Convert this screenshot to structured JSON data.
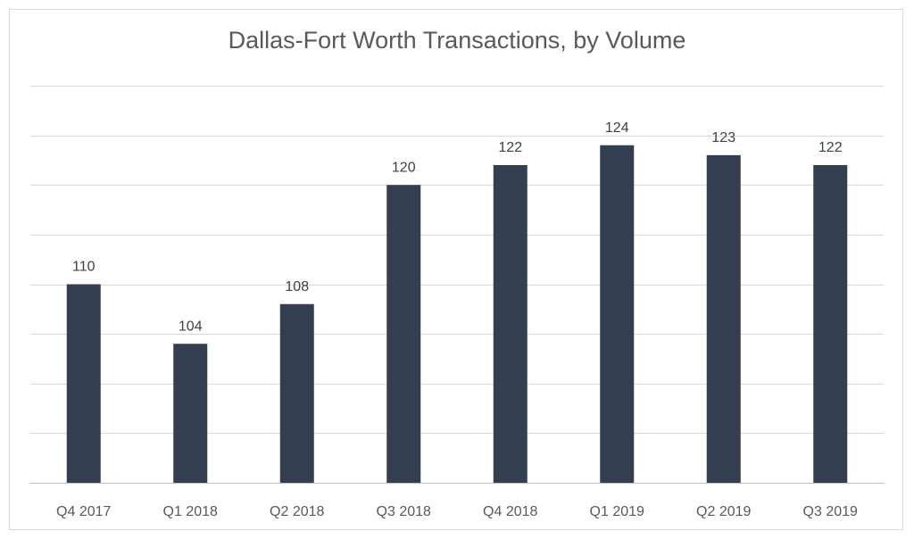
{
  "chart_data": {
    "type": "bar",
    "title": "Dallas-Fort Worth Transactions, by Volume",
    "xlabel": "",
    "ylabel": "",
    "categories": [
      "Q4 2017",
      "Q1 2018",
      "Q2 2018",
      "Q3 2018",
      "Q4 2018",
      "Q1 2019",
      "Q2 2019",
      "Q3 2019"
    ],
    "values": [
      110,
      104,
      108,
      120,
      122,
      124,
      123,
      122
    ],
    "data_labels": true,
    "ylim": [
      90,
      130
    ],
    "grid": true,
    "legend": "none",
    "bar_color": "#333f50"
  }
}
